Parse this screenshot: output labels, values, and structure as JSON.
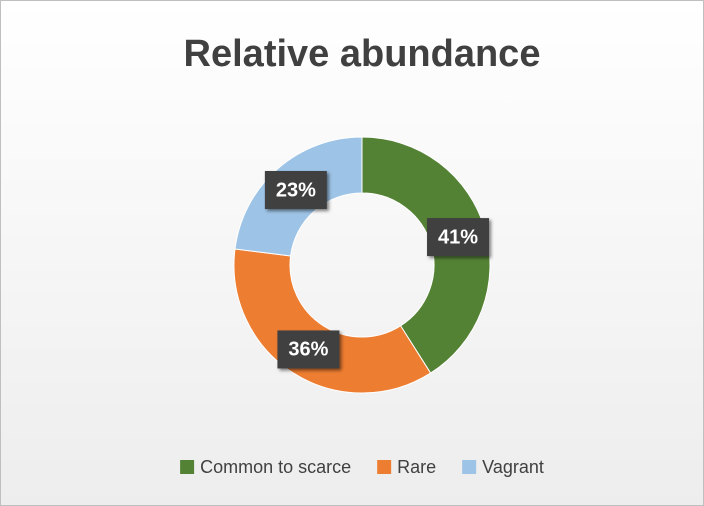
{
  "chart_data": {
    "type": "donut",
    "title": "Relative abundance",
    "categories": [
      "Common to scarce",
      "Rare",
      "Vagrant"
    ],
    "values": [
      41,
      36,
      23
    ],
    "value_labels": [
      "41%",
      "36%",
      "23%"
    ],
    "colors": [
      "#548235",
      "#ed7d31",
      "#9dc3e6"
    ],
    "legend": "bottom"
  }
}
